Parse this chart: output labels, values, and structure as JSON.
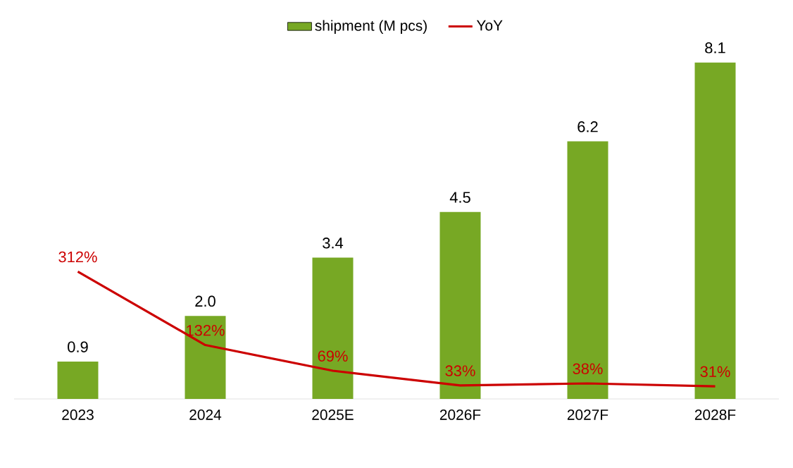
{
  "chart_data": {
    "type": "bar",
    "categories": [
      "2023",
      "2024",
      "2025E",
      "2026F",
      "2027F",
      "2028F"
    ],
    "series": [
      {
        "name": "shipment (M pcs)",
        "color": "#77a824",
        "values": [
          0.9,
          2.0,
          3.4,
          4.5,
          6.2,
          8.1
        ],
        "value_labels": [
          "0.9",
          "2.0",
          "3.4",
          "4.5",
          "6.2",
          "8.1"
        ]
      },
      {
        "name": "YoY",
        "type": "line",
        "axis": "y2",
        "color": "#cc0000",
        "values": [
          312,
          132,
          69,
          33,
          38,
          31
        ],
        "value_labels": [
          "312%",
          "132%",
          "69%",
          "33%",
          "38%",
          "31%"
        ]
      }
    ],
    "tick_labels": "x",
    "legend": "top",
    "marker": "none",
    "line_style": "solid",
    "grid": false
  }
}
